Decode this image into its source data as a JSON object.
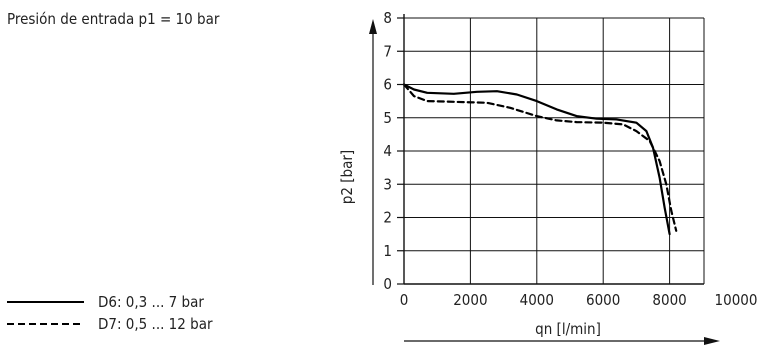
{
  "note": "Presión de entrada p1 = 10 bar",
  "chart_data": {
    "type": "line",
    "xlabel": "qn [l/min]",
    "ylabel": "p2 [bar]",
    "xlim": [
      0,
      10000
    ],
    "ylim": [
      0,
      8
    ],
    "x_ticks": [
      "0",
      "2000",
      "4000",
      "6000",
      "8000",
      "10000"
    ],
    "y_ticks": [
      "0",
      "1",
      "2",
      "3",
      "4",
      "5",
      "6",
      "7",
      "8"
    ],
    "grid": true,
    "legend_position": "bottom-left",
    "series": [
      {
        "name": "D6: 0,3 ... 7 bar",
        "line_style": "solid",
        "color": "#000000",
        "points": [
          [
            0,
            6.0
          ],
          [
            300,
            5.85
          ],
          [
            700,
            5.75
          ],
          [
            1500,
            5.72
          ],
          [
            2200,
            5.78
          ],
          [
            2800,
            5.8
          ],
          [
            3400,
            5.7
          ],
          [
            4000,
            5.5
          ],
          [
            4600,
            5.25
          ],
          [
            5200,
            5.05
          ],
          [
            5800,
            4.97
          ],
          [
            6400,
            4.95
          ],
          [
            7000,
            4.85
          ],
          [
            7300,
            4.6
          ],
          [
            7500,
            4.1
          ],
          [
            7700,
            3.2
          ],
          [
            7850,
            2.3
          ],
          [
            8000,
            1.5
          ]
        ]
      },
      {
        "name": "D7: 0,5 ... 12 bar",
        "line_style": "dashed",
        "color": "#000000",
        "points": [
          [
            0,
            6.0
          ],
          [
            300,
            5.65
          ],
          [
            700,
            5.5
          ],
          [
            1500,
            5.48
          ],
          [
            2500,
            5.45
          ],
          [
            3200,
            5.3
          ],
          [
            4000,
            5.05
          ],
          [
            4600,
            4.92
          ],
          [
            5200,
            4.87
          ],
          [
            6000,
            4.85
          ],
          [
            6600,
            4.8
          ],
          [
            7000,
            4.6
          ],
          [
            7400,
            4.3
          ],
          [
            7700,
            3.7
          ],
          [
            7900,
            3.0
          ],
          [
            8050,
            2.2
          ],
          [
            8200,
            1.6
          ]
        ]
      }
    ]
  }
}
